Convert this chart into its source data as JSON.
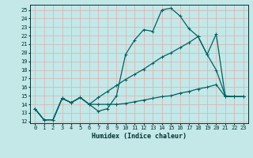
{
  "xlabel": "Humidex (Indice chaleur)",
  "bg_color": "#c4e8e8",
  "grid_color": "#d4b8b8",
  "line_color": "#006060",
  "xlim": [
    -0.5,
    23.5
  ],
  "ylim": [
    11.8,
    25.6
  ],
  "yticks": [
    12,
    13,
    14,
    15,
    16,
    17,
    18,
    19,
    20,
    21,
    22,
    23,
    24,
    25
  ],
  "xticks": [
    0,
    1,
    2,
    3,
    4,
    5,
    6,
    7,
    8,
    9,
    10,
    11,
    12,
    13,
    14,
    15,
    16,
    17,
    18,
    19,
    20,
    21,
    22,
    23
  ],
  "line1_x": [
    0,
    1,
    2,
    3,
    4,
    5,
    6,
    7,
    8,
    9,
    10,
    11,
    12,
    13,
    14,
    15,
    16,
    17,
    18,
    19,
    20,
    21,
    22,
    23
  ],
  "line1_y": [
    13.5,
    12.2,
    12.2,
    14.7,
    14.2,
    14.8,
    14.0,
    13.2,
    13.5,
    15.0,
    19.8,
    21.5,
    22.7,
    22.5,
    25.0,
    25.2,
    24.3,
    22.8,
    21.9,
    19.8,
    18.0,
    15.0,
    14.9,
    14.9
  ],
  "line2_x": [
    0,
    1,
    2,
    3,
    4,
    5,
    6,
    7,
    8,
    9,
    10,
    11,
    12,
    13,
    14,
    15,
    16,
    17,
    18,
    19,
    20,
    21,
    22,
    23
  ],
  "line2_y": [
    13.5,
    12.2,
    12.2,
    14.7,
    14.2,
    14.8,
    14.0,
    14.8,
    15.5,
    16.2,
    16.9,
    17.5,
    18.1,
    18.8,
    19.5,
    20.0,
    20.6,
    21.2,
    21.9,
    19.8,
    22.2,
    14.9,
    14.9,
    14.9
  ],
  "line3_x": [
    0,
    1,
    2,
    3,
    4,
    5,
    6,
    7,
    8,
    9,
    10,
    11,
    12,
    13,
    14,
    15,
    16,
    17,
    18,
    19,
    20,
    21,
    22,
    23
  ],
  "line3_y": [
    13.5,
    12.2,
    12.2,
    14.7,
    14.2,
    14.8,
    14.0,
    14.0,
    14.0,
    14.0,
    14.1,
    14.3,
    14.5,
    14.7,
    14.9,
    15.0,
    15.3,
    15.5,
    15.8,
    16.0,
    16.3,
    14.9,
    14.9,
    14.9
  ]
}
